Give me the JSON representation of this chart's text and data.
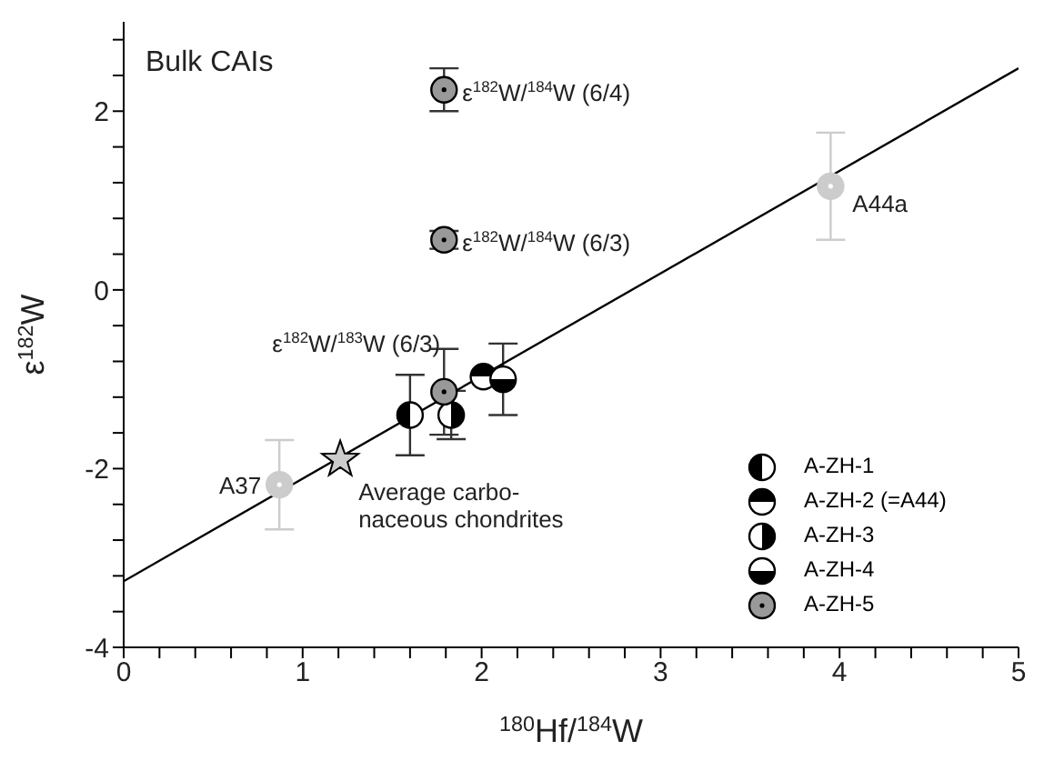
{
  "chart_data": {
    "type": "scatter",
    "title": "Bulk CAIs",
    "xlabel": "$^{180}$Hf/$^{184}$W",
    "ylabel": "ε$^{182}$W",
    "xlim": [
      0,
      5
    ],
    "ylim": [
      -4,
      3
    ],
    "xticks": [
      0,
      {
        "value": 0.2,
        "label": null
      },
      {
        "value": 0.4,
        "label": null
      },
      {
        "value": 0.6,
        "label": null
      },
      {
        "value": 0.8,
        "label": null
      },
      1,
      {
        "value": 1.2,
        "label": null
      },
      {
        "value": 1.4,
        "label": null
      },
      {
        "value": 1.6,
        "label": null
      },
      {
        "value": 1.8,
        "label": null
      },
      2,
      {
        "value": 2.2,
        "label": null
      },
      {
        "value": 2.4,
        "label": null
      },
      {
        "value": 2.6,
        "label": null
      },
      {
        "value": 2.8,
        "label": null
      },
      3,
      {
        "value": 3.2,
        "label": null
      },
      {
        "value": 3.4,
        "label": null
      },
      {
        "value": 3.6,
        "label": null
      },
      {
        "value": 3.8,
        "label": null
      },
      4,
      {
        "value": 4.2,
        "label": null
      },
      {
        "value": 4.4,
        "label": null
      },
      {
        "value": 4.6,
        "label": null
      },
      {
        "value": 4.8,
        "label": null
      },
      5
    ],
    "yticks": [
      -4,
      {
        "value": -3.6,
        "label": null
      },
      {
        "value": -3.2,
        "label": null
      },
      {
        "value": -2.8,
        "label": null
      },
      {
        "value": -2.4,
        "label": null
      },
      -2,
      {
        "value": -1.6,
        "label": null
      },
      {
        "value": -1.2,
        "label": null
      },
      {
        "value": -0.8,
        "label": null
      },
      {
        "value": -0.4,
        "label": null
      },
      0,
      {
        "value": 0.4,
        "label": null
      },
      {
        "value": 0.8,
        "label": null
      },
      {
        "value": 1.2,
        "label": null
      },
      {
        "value": 1.6,
        "label": null
      },
      2,
      {
        "value": 2.4,
        "label": null
      },
      {
        "value": 2.8,
        "label": null
      }
    ],
    "legend": "bottom right",
    "marker": "circle",
    "series": [
      {
        "name": "A-ZH-1",
        "color": "#000000",
        "x": [
          1.6
        ],
        "values": [
          -1.4
        ],
        "errors": [
          0.45
        ]
      },
      {
        "name": "A-ZH-2 (=A44)",
        "color": "#000000",
        "x": [
          2.01
        ],
        "values": [
          -0.97
        ],
        "errors": [
          null
        ]
      },
      {
        "name": "A-ZH-3",
        "color": "#000000",
        "x": [
          1.83
        ],
        "values": [
          -1.4
        ],
        "errors": [
          0.27
        ]
      },
      {
        "name": "A-ZH-4",
        "color": "#000000",
        "x": [
          2.12
        ],
        "values": [
          -1.0
        ],
        "errors": [
          0.4
        ]
      },
      {
        "name": "A-ZH-5",
        "color": "#999999",
        "x": [
          1.79,
          1.79,
          1.79
        ],
        "values": [
          2.24,
          0.56,
          -1.14
        ],
        "errors": [
          0.24,
          0.1,
          0.48
        ]
      },
      {
        "color": "#cccccc",
        "x": [
          0.87,
          3.95
        ],
        "values": [
          -2.18,
          1.16
        ],
        "errors": [
          0.5,
          0.6
        ]
      },
      {
        "color": "#cccccc",
        "marker": "star",
        "x": [
          1.21
        ],
        "values": [
          -1.9
        ]
      },
      {
        "type": "line",
        "color": "#000000",
        "marker": "none",
        "x": [
          0,
          5
        ],
        "values": [
          -3.26,
          2.48
        ]
      }
    ],
    "annotations": [
      {
        "text": "ε$^{182}$W/$^{184}$W (6/4)",
        "x": 1.79,
        "y": 2.24
      },
      {
        "text": "ε$^{182}$W/$^{184}$W (6/3)",
        "x": 1.79,
        "y": 0.56
      },
      {
        "text": "ε$^{182}$W/$^{183}$W (6/3)",
        "x": 1.79,
        "y": -1.14
      },
      {
        "text": "A44a",
        "x": 3.95,
        "y": 1.16
      },
      {
        "text": "A37",
        "x": 0.87,
        "y": -2.18
      },
      {
        "text": "Average carbo-\nnaceous chondrites",
        "x": 1.21,
        "y": -1.9
      }
    ]
  }
}
